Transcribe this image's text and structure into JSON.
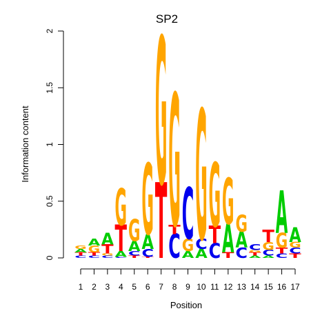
{
  "chart_data": {
    "type": "sequence-logo",
    "title": "SP2",
    "xlabel": "Position",
    "ylabel": "Information content",
    "ylim": [
      0,
      2
    ],
    "yticks": [
      "0",
      "0.5",
      "1",
      "1.5",
      "2"
    ],
    "positions": [
      "1",
      "2",
      "3",
      "4",
      "5",
      "6",
      "7",
      "8",
      "9",
      "10",
      "11",
      "12",
      "13",
      "14",
      "15",
      "16",
      "17"
    ],
    "colors": {
      "A": "#00cc00",
      "C": "#0000ee",
      "G": "#ffa500",
      "T": "#ff0000"
    },
    "columns": [
      [
        [
          "C",
          0.02
        ],
        [
          "T",
          0.03
        ],
        [
          "A",
          0.03
        ],
        [
          "G",
          0.03
        ]
      ],
      [
        [
          "C",
          0.02
        ],
        [
          "T",
          0.03
        ],
        [
          "G",
          0.06
        ],
        [
          "A",
          0.06
        ]
      ],
      [
        [
          "C",
          0.02
        ],
        [
          "G",
          0.02
        ],
        [
          "T",
          0.08
        ],
        [
          "A",
          0.1
        ]
      ],
      [
        [
          "C",
          0.01
        ],
        [
          "A",
          0.05
        ],
        [
          "T",
          0.23
        ],
        [
          "G",
          0.32
        ]
      ],
      [
        [
          "T",
          0.02
        ],
        [
          "C",
          0.04
        ],
        [
          "A",
          0.09
        ],
        [
          "G",
          0.19
        ]
      ],
      [
        [
          "T",
          0.01
        ],
        [
          "C",
          0.07
        ],
        [
          "A",
          0.13
        ],
        [
          "G",
          0.62
        ]
      ],
      [
        [
          "T",
          0.66
        ],
        [
          "G",
          1.28
        ]
      ],
      [
        [
          "C",
          0.21
        ],
        [
          "T",
          0.08
        ],
        [
          "G",
          1.15
        ]
      ],
      [
        [
          "A",
          0.06
        ],
        [
          "G",
          0.11
        ],
        [
          "C",
          0.45
        ]
      ],
      [
        [
          "A",
          0.08
        ],
        [
          "C",
          0.09
        ],
        [
          "G",
          1.13
        ]
      ],
      [
        [
          "C",
          0.13
        ],
        [
          "T",
          0.15
        ],
        [
          "G",
          0.56
        ]
      ],
      [
        [
          "T",
          0.05
        ],
        [
          "A",
          0.25
        ],
        [
          "G",
          0.4
        ]
      ],
      [
        [
          "C",
          0.09
        ],
        [
          "A",
          0.14
        ],
        [
          "G",
          0.15
        ]
      ],
      [
        [
          "A",
          0.02
        ],
        [
          "T",
          0.03
        ],
        [
          "G",
          0.02
        ],
        [
          "C",
          0.05
        ]
      ],
      [
        [
          "A",
          0.02
        ],
        [
          "C",
          0.05
        ],
        [
          "G",
          0.07
        ],
        [
          "T",
          0.11
        ]
      ],
      [
        [
          "C",
          0.04
        ],
        [
          "T",
          0.05
        ],
        [
          "G",
          0.13
        ],
        [
          "A",
          0.37
        ]
      ],
      [
        [
          "T",
          0.04
        ],
        [
          "C",
          0.05
        ],
        [
          "G",
          0.05
        ],
        [
          "A",
          0.13
        ]
      ]
    ]
  }
}
